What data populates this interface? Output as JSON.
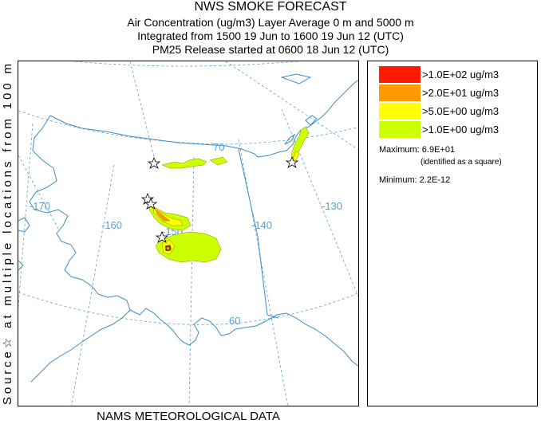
{
  "header": {
    "title": "NWS SMOKE FORECAST",
    "line2": "Air Concentration (ug/m3) Layer Average    0 m and  5000 m",
    "line3": "Integrated from 1500 19 Jun to 1600 19 Jun 12 (UTC)",
    "line4": "PM25 Release started at 0600 18 Jun 12 (UTC)"
  },
  "side_label": "Source☆  at multiple locations  from   100 m",
  "footer": "NAMS METEOROLOGICAL DATA",
  "map": {
    "longitude_labels": [
      "-170",
      "-160",
      "-150",
      "-140",
      "-130"
    ],
    "latitude_labels": [
      "70",
      "60"
    ],
    "colors": {
      "graticule": "#5aa0d0",
      "coast": "#3c8cc8",
      "border": "#3c8cc8"
    },
    "source_marker": "star-icon",
    "max_marker": "square-icon"
  },
  "legend": {
    "items": [
      {
        "label": ">1.0E+02 ug/m3",
        "color": "#ff1a00"
      },
      {
        "label": ">2.0E+01 ug/m3",
        "color": "#ff9900"
      },
      {
        "label": ">5.0E+00 ug/m3",
        "color": "#ffff00"
      },
      {
        "label": ">1.0E+00 ug/m3",
        "color": "#ccff00"
      }
    ],
    "maximum": "Maximum: 6.9E+01",
    "maximum_note": "(identified as a square)",
    "minimum": "Minimum: 2.2E-12"
  }
}
